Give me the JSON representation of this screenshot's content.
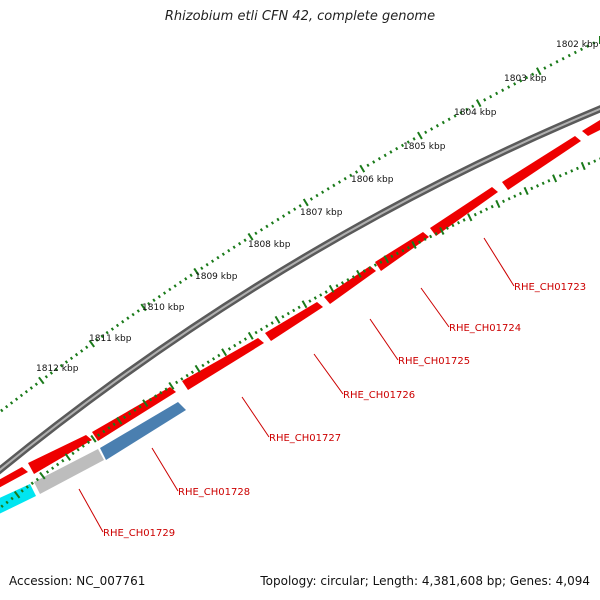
{
  "title": "Rhizobium etli CFN 42, complete genome",
  "footer": {
    "accession": "Accession: NC_007761",
    "summary": "Topology: circular; Length: 4,381,608 bp; Genes: 4,094"
  },
  "colors": {
    "backbone": "#7a7a7a",
    "gene_red": "#ee0000",
    "gene_blue": "#4a7fb0",
    "gene_grey": "#bdbdbd",
    "gene_cyan": "#00e5f0",
    "tick_green": "#1a7a1a",
    "label_red": "#cc0000"
  },
  "scale": {
    "ticks": [
      "1802 kbp",
      "1803 kbp",
      "1804 kbp",
      "1805 kbp",
      "1806 kbp",
      "1807 kbp",
      "1808 kbp",
      "1809 kbp",
      "1810 kbp",
      "1811 kbp",
      "1812 kbp"
    ]
  },
  "genes": [
    {
      "label": "RHE_CH01723",
      "color": "red"
    },
    {
      "label": "RHE_CH01724",
      "color": "red"
    },
    {
      "label": "RHE_CH01725",
      "color": "red"
    },
    {
      "label": "RHE_CH01726",
      "color": "red"
    },
    {
      "label": "RHE_CH01727",
      "color": "red"
    },
    {
      "label": "RHE_CH01728",
      "color": "blue"
    },
    {
      "label": "RHE_CH01729",
      "color": "grey"
    }
  ]
}
